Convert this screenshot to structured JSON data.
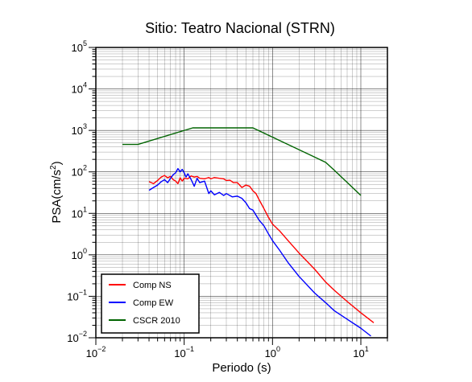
{
  "chart_data": {
    "type": "line",
    "title": "Sitio: Teatro Nacional (STRN)",
    "xlabel": "Periodo (s)",
    "ylabel_prefix": "PSA(cm/s",
    "ylabel_sup": "2",
    "ylabel_suffix": ")",
    "x_scale": "log",
    "y_scale": "log",
    "xlim": [
      0.01,
      20
    ],
    "ylim": [
      0.01,
      100000
    ],
    "grid": true,
    "legend_position": "bottom-left",
    "x_ticks": [
      {
        "value": 0.01,
        "base": "10",
        "exp": "−2"
      },
      {
        "value": 0.1,
        "base": "10",
        "exp": "−1"
      },
      {
        "value": 1,
        "base": "10",
        "exp": "0"
      },
      {
        "value": 10,
        "base": "10",
        "exp": "1"
      }
    ],
    "y_ticks": [
      {
        "value": 0.01,
        "base": "10",
        "exp": "−2"
      },
      {
        "value": 0.1,
        "base": "10",
        "exp": "−1"
      },
      {
        "value": 1,
        "base": "10",
        "exp": "0"
      },
      {
        "value": 10,
        "base": "10",
        "exp": "1"
      },
      {
        "value": 100,
        "base": "10",
        "exp": "2"
      },
      {
        "value": 1000,
        "base": "10",
        "exp": "3"
      },
      {
        "value": 10000,
        "base": "10",
        "exp": "4"
      },
      {
        "value": 100000,
        "base": "10",
        "exp": "5"
      }
    ],
    "series": [
      {
        "name": "Comp NS",
        "color": "#ff0000",
        "x": [
          0.04,
          0.045,
          0.05,
          0.055,
          0.06,
          0.065,
          0.07,
          0.075,
          0.08,
          0.085,
          0.09,
          0.095,
          0.1,
          0.11,
          0.12,
          0.13,
          0.14,
          0.15,
          0.17,
          0.19,
          0.2,
          0.22,
          0.25,
          0.28,
          0.3,
          0.33,
          0.36,
          0.4,
          0.45,
          0.5,
          0.55,
          0.6,
          0.65,
          0.7,
          0.8,
          0.9,
          1.0,
          1.2,
          1.5,
          2,
          3,
          4,
          5,
          7,
          10,
          14
        ],
        "y": [
          58,
          52,
          62,
          75,
          82,
          72,
          78,
          65,
          60,
          52,
          72,
          60,
          70,
          68,
          80,
          75,
          78,
          70,
          68,
          73,
          68,
          73,
          70,
          68,
          62,
          63,
          55,
          55,
          42,
          48,
          45,
          35,
          30,
          22,
          13,
          8,
          5.5,
          3.8,
          2.2,
          1.1,
          0.45,
          0.22,
          0.14,
          0.075,
          0.04,
          0.023
        ]
      },
      {
        "name": "Comp EW",
        "color": "#0000ff",
        "x": [
          0.04,
          0.045,
          0.05,
          0.055,
          0.06,
          0.065,
          0.07,
          0.075,
          0.08,
          0.085,
          0.09,
          0.095,
          0.1,
          0.105,
          0.11,
          0.12,
          0.13,
          0.14,
          0.15,
          0.17,
          0.19,
          0.2,
          0.22,
          0.25,
          0.28,
          0.3,
          0.35,
          0.4,
          0.45,
          0.5,
          0.55,
          0.6,
          0.7,
          0.8,
          0.9,
          1.0,
          1.2,
          1.5,
          2,
          3,
          4,
          5,
          7,
          10,
          13
        ],
        "y": [
          36,
          42,
          48,
          58,
          65,
          55,
          70,
          85,
          95,
          120,
          100,
          115,
          95,
          75,
          90,
          65,
          45,
          70,
          55,
          60,
          30,
          35,
          28,
          32,
          27,
          30,
          25,
          26,
          23,
          18,
          13,
          12,
          7,
          5,
          3.2,
          2.2,
          1.3,
          0.65,
          0.3,
          0.12,
          0.07,
          0.045,
          0.028,
          0.017,
          0.011
        ]
      },
      {
        "name": "CSCR 2010",
        "color": "#006400",
        "x": [
          0.02,
          0.03,
          0.125,
          0.6,
          4,
          5,
          10
        ],
        "y": [
          460,
          460,
          1150,
          1150,
          170,
          110,
          27
        ]
      }
    ]
  }
}
